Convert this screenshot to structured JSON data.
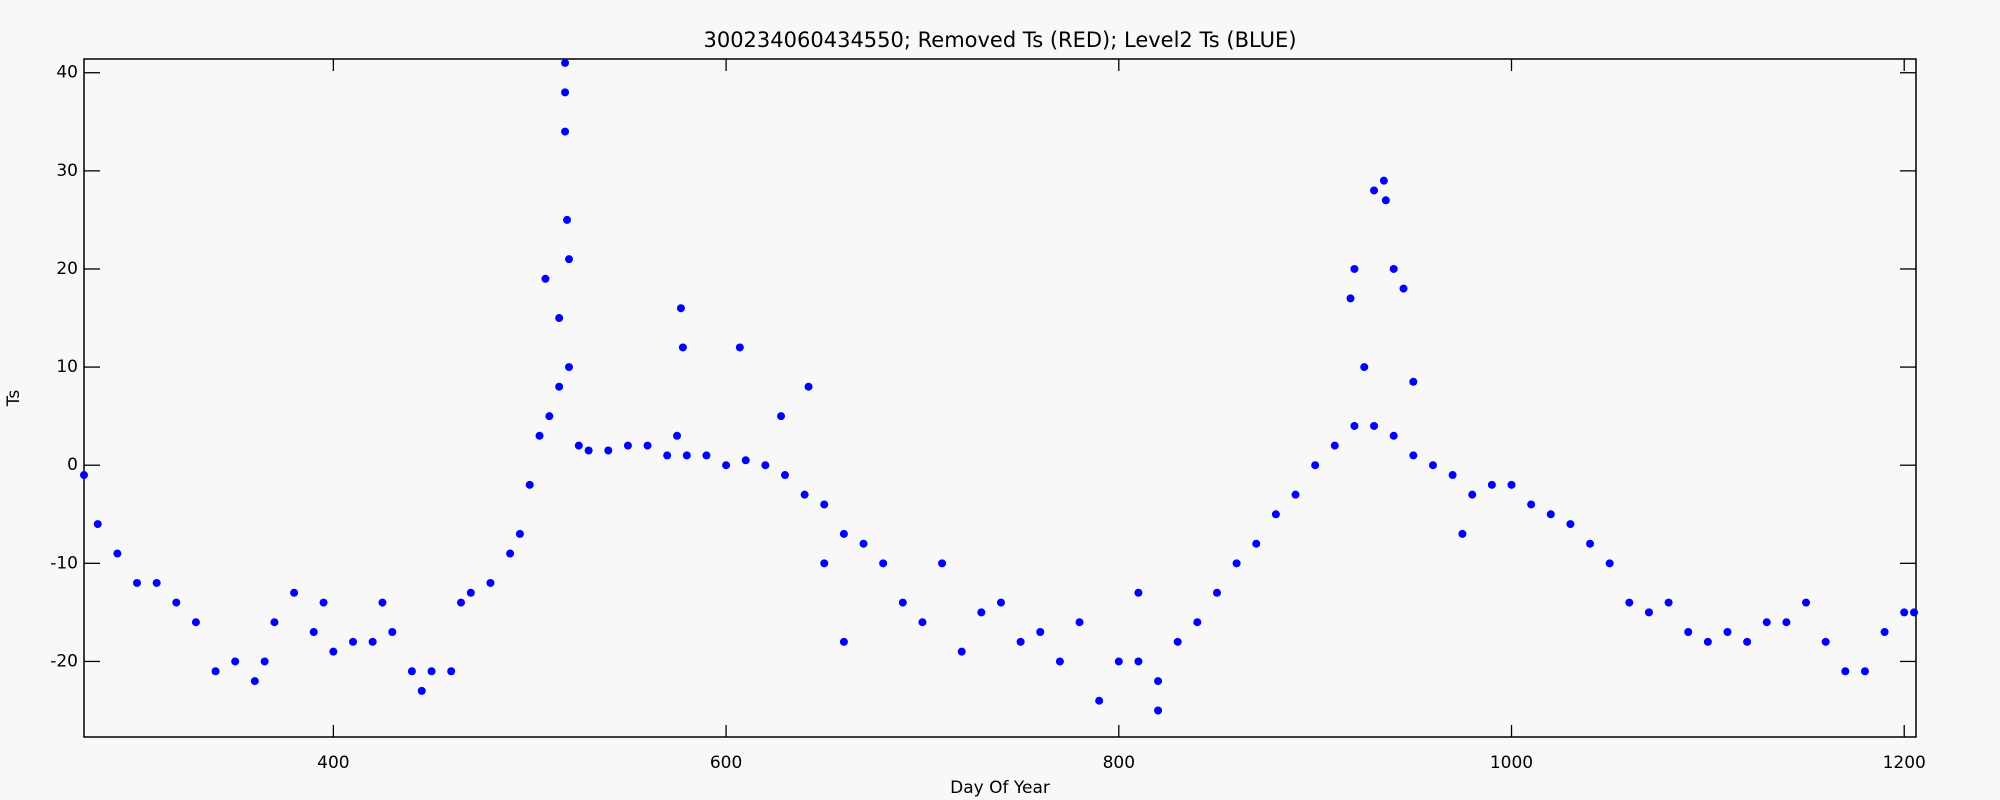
{
  "chart_data": {
    "type": "scatter",
    "title": "300234060434550; Removed Ts (RED); Level2 Ts (BLUE)",
    "x_label": "Day Of Year",
    "y_label": "Ts",
    "xlim": [
      273,
      1206
    ],
    "ylim": [
      -27.7,
      41.4
    ],
    "xticks": [
      400,
      600,
      800,
      1000,
      1200
    ],
    "yticks": [
      -20,
      -10,
      0,
      10,
      20,
      30,
      40
    ],
    "series": [
      {
        "color": "#0000ff",
        "x": [
          273,
          280,
          290,
          300,
          310,
          320,
          330,
          340,
          350,
          360,
          365,
          370,
          380,
          390,
          395,
          400,
          410,
          420,
          425,
          430,
          440,
          445,
          450,
          460,
          465,
          470,
          480,
          490,
          495,
          500,
          505,
          508,
          510,
          515,
          515,
          518,
          518,
          518,
          519,
          520,
          520,
          525,
          530,
          540,
          550,
          560,
          570,
          575,
          577,
          578,
          580,
          590,
          600,
          607,
          610,
          620,
          628,
          630,
          640,
          642,
          650,
          650,
          660,
          660,
          670,
          680,
          690,
          700,
          710,
          720,
          730,
          740,
          750,
          760,
          770,
          780,
          790,
          800,
          810,
          810,
          820,
          820,
          830,
          840,
          850,
          860,
          870,
          880,
          890,
          900,
          910,
          918,
          920,
          920,
          925,
          930,
          930,
          935,
          936,
          940,
          940,
          945,
          950,
          950,
          960,
          970,
          975,
          980,
          990,
          1000,
          1010,
          1020,
          1030,
          1040,
          1050,
          1060,
          1070,
          1080,
          1090,
          1100,
          1110,
          1120,
          1130,
          1140,
          1150,
          1160,
          1170,
          1180,
          1190,
          1200,
          1205
        ],
        "values": [
          -1,
          -6,
          -9,
          -12,
          -12,
          -14,
          -16,
          -21,
          -20,
          -22,
          -20,
          -16,
          -13,
          -17,
          -14,
          -19,
          -18,
          -18,
          -14,
          -17,
          -21,
          -23,
          -21,
          -21,
          -14,
          -13,
          -12,
          -9,
          -7,
          -2,
          3,
          19,
          5,
          8,
          15,
          41,
          38,
          34,
          25,
          10,
          21,
          2,
          1.5,
          1.5,
          2,
          2,
          1,
          3,
          16,
          12,
          1,
          1,
          0,
          12,
          0.5,
          0,
          5,
          -1,
          -3,
          8,
          -4,
          -10,
          -7,
          -18,
          -8,
          -10,
          -14,
          -16,
          -10,
          -19,
          -15,
          -14,
          -18,
          -17,
          -20,
          -16,
          -24,
          -20,
          -20,
          -13,
          -22,
          -25,
          -18,
          -16,
          -13,
          -10,
          -8,
          -5,
          -3,
          0,
          2,
          17,
          4,
          20,
          10,
          4,
          28,
          29,
          27,
          3,
          20,
          18,
          1,
          8.5,
          0,
          -1,
          -7,
          -3,
          -2,
          -2,
          -4,
          -5,
          -6,
          -8,
          -10,
          -14,
          -15,
          -14,
          -17,
          -18,
          -17,
          -18,
          -16,
          -16,
          -14,
          -18,
          -21,
          -21,
          -17,
          -15,
          -15
        ]
      }
    ]
  }
}
